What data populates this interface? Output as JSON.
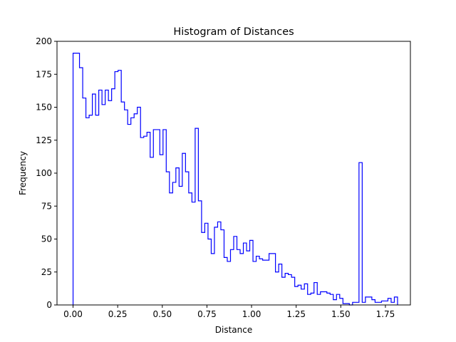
{
  "chart_data": {
    "type": "histogram",
    "title": "Histogram of Distances",
    "xlabel": "Distance",
    "ylabel": "Frequency",
    "xlim": [
      -0.09,
      1.89
    ],
    "ylim": [
      0,
      200
    ],
    "x_ticks": [
      0.0,
      0.25,
      0.5,
      0.75,
      1.0,
      1.25,
      1.5,
      1.75
    ],
    "x_tick_labels": [
      "0.00",
      "0.25",
      "0.50",
      "0.75",
      "1.00",
      "1.25",
      "1.50",
      "1.75"
    ],
    "y_ticks": [
      0,
      25,
      50,
      75,
      100,
      125,
      150,
      175,
      200
    ],
    "y_tick_labels": [
      "0",
      "25",
      "50",
      "75",
      "100",
      "125",
      "150",
      "175",
      "200"
    ],
    "grid": false,
    "legend": "none",
    "histtype": "step",
    "line_color": "#0000ff",
    "bin_start": 0.0,
    "bin_width": 0.018,
    "counts": [
      191,
      191,
      180,
      157,
      142,
      144,
      160,
      144,
      163,
      152,
      163,
      155,
      164,
      177,
      178,
      154,
      148,
      137,
      142,
      145,
      150,
      127,
      128,
      131,
      112,
      133,
      133,
      114,
      133,
      101,
      85,
      93,
      104,
      90,
      115,
      101,
      85,
      78,
      134,
      79,
      55,
      62,
      50,
      39,
      59,
      63,
      57,
      36,
      33,
      42,
      52,
      42,
      39,
      47,
      41,
      49,
      33,
      37,
      35,
      34,
      34,
      39,
      39,
      25,
      31,
      21,
      24,
      23,
      21,
      14,
      15,
      12,
      16,
      8,
      9,
      17,
      8,
      10,
      10,
      9,
      8,
      4,
      8,
      5,
      1,
      1,
      0,
      2,
      2,
      108,
      2,
      6,
      6,
      4,
      2,
      2,
      3,
      3,
      5,
      2,
      6
    ]
  }
}
